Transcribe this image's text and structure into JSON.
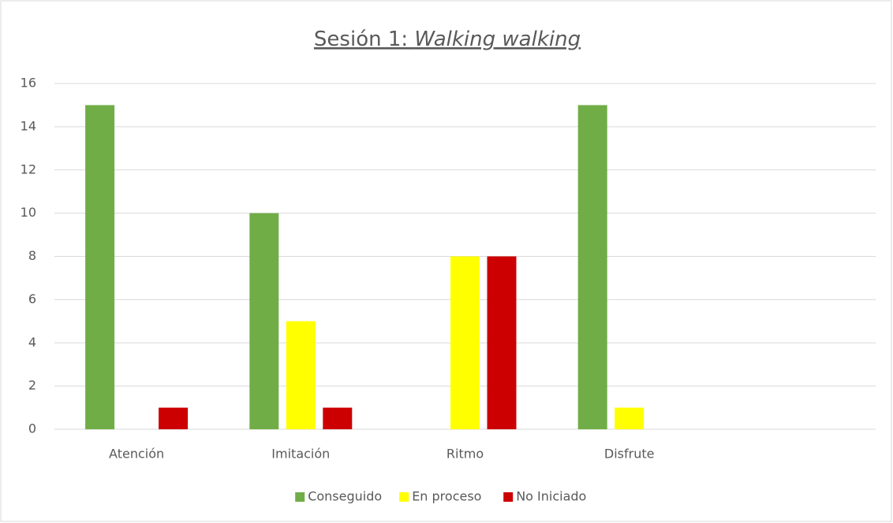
{
  "chart_data": {
    "type": "bar",
    "title": [
      "Sesión 1: ",
      "Walking walking"
    ],
    "categories": [
      "Atención",
      "Imitación",
      "Ritmo",
      "Disfrute",
      null
    ],
    "series": [
      {
        "name": "Conseguido",
        "color": "#70ad47",
        "values": [
          15,
          10,
          0,
          15,
          null
        ]
      },
      {
        "name": "En proceso",
        "color": "#ffff00",
        "values": [
          0,
          5,
          8,
          1,
          null
        ]
      },
      {
        "name": "No Iniciado",
        "color": "#cc0000",
        "values": [
          1,
          1,
          8,
          0,
          null
        ]
      }
    ],
    "ylim": [
      0,
      16
    ],
    "yticks": [
      0,
      2,
      4,
      6,
      8,
      10,
      12,
      14,
      16
    ],
    "grid": true,
    "legend": "bottom"
  }
}
